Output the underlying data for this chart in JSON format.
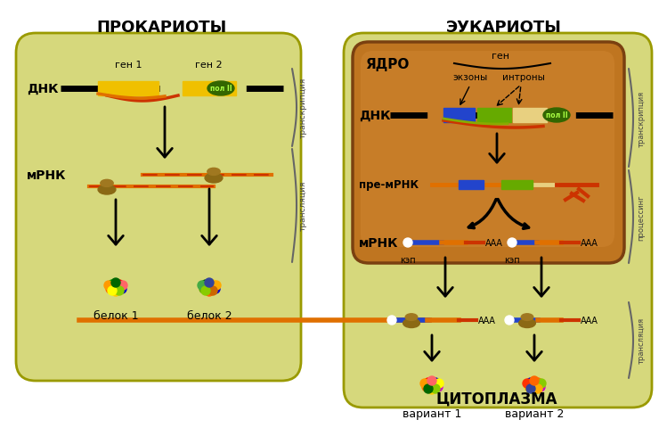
{
  "title_prokaryotes": "ПРОКАРИОТЫ",
  "title_eukaryotes": "ЭУКАРИОТЫ",
  "label_nucleus": "ЯДРО",
  "label_cytoplasm": "ЦИТОПЛАЗМА",
  "label_dna": "ДНК",
  "label_mrna": "мРНК",
  "label_premrna": "пре-мРНК",
  "label_protein1": "белок 1",
  "label_protein2": "белок 2",
  "label_variant1": "вариант 1",
  "label_variant2": "вариант 2",
  "label_gene1": "ген 1",
  "label_gene2": "ген 2",
  "label_gene": "ген",
  "label_exons": "экзоны",
  "label_introns": "интроны",
  "label_cap": "кэп",
  "label_pol2": "пол II",
  "label_transcription": "транскрипция",
  "label_translation": "трансляция",
  "label_processing": "процессинг",
  "color_background": "#ffffff",
  "color_cell_fill": "#d4d87a",
  "color_cell_edge": "#9a9a00",
  "color_nucleus_fill": "#c07828",
  "color_nucleus_edge": "#7a4010",
  "color_nucleus_gradient": "#d09040",
  "color_pol2_fill": "#336600",
  "color_pol2_text": "#aaff44",
  "color_ribosome_large": "#8B6914",
  "color_ribosome_small": "#a07820",
  "color_dna_yellow": "#f0c000",
  "color_dna_black": "#111111",
  "color_dna_red": "#cc2200",
  "color_dna_orange": "#e07000",
  "color_dna_blue": "#2244cc",
  "color_dna_green": "#66aa00",
  "color_dna_beige": "#e8d080",
  "color_arrow": "#000000"
}
